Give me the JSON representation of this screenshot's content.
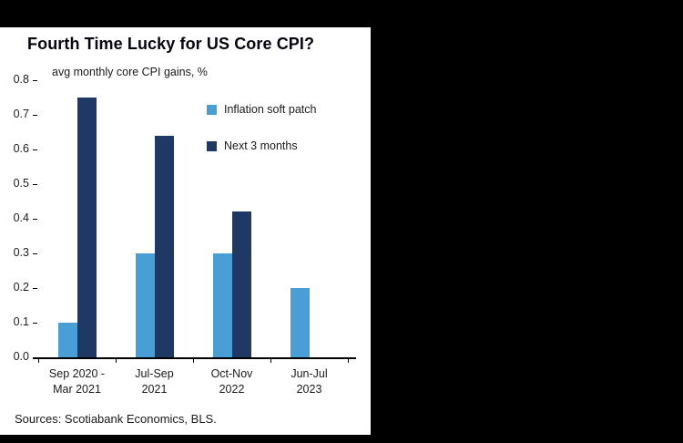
{
  "frame": {
    "background": "#000000",
    "panel_background": "#ffffff"
  },
  "chart_data": {
    "type": "bar",
    "title": "Fourth Time Lucky for US Core CPI?",
    "subtitle": "avg monthly core CPI gains, %",
    "source": "Sources: Scotiabank Economics, BLS.",
    "categories": [
      "Sep 2020 - Mar 2021",
      "Jul-Sep 2021",
      "Oct-Nov 2022",
      "Jun-Jul 2023"
    ],
    "category_labels": [
      [
        "Sep 2020 -",
        "Mar 2021"
      ],
      [
        "Jul-Sep",
        "2021"
      ],
      [
        "Oct-Nov",
        "2022"
      ],
      [
        "Jun-Jul",
        "2023"
      ]
    ],
    "series": [
      {
        "name": "Inflation soft patch",
        "color": "#4A9ED6",
        "values": [
          0.1,
          0.3,
          0.3,
          0.2
        ]
      },
      {
        "name": "Next 3 months",
        "color": "#1F3864",
        "values": [
          0.75,
          0.64,
          0.42,
          null
        ]
      }
    ],
    "ylim": [
      0,
      0.8
    ],
    "ytick_step": 0.1,
    "ytick_decimals": 1,
    "grid": false,
    "legend_position": "inside-upper-right",
    "bar_style": "grouped"
  }
}
